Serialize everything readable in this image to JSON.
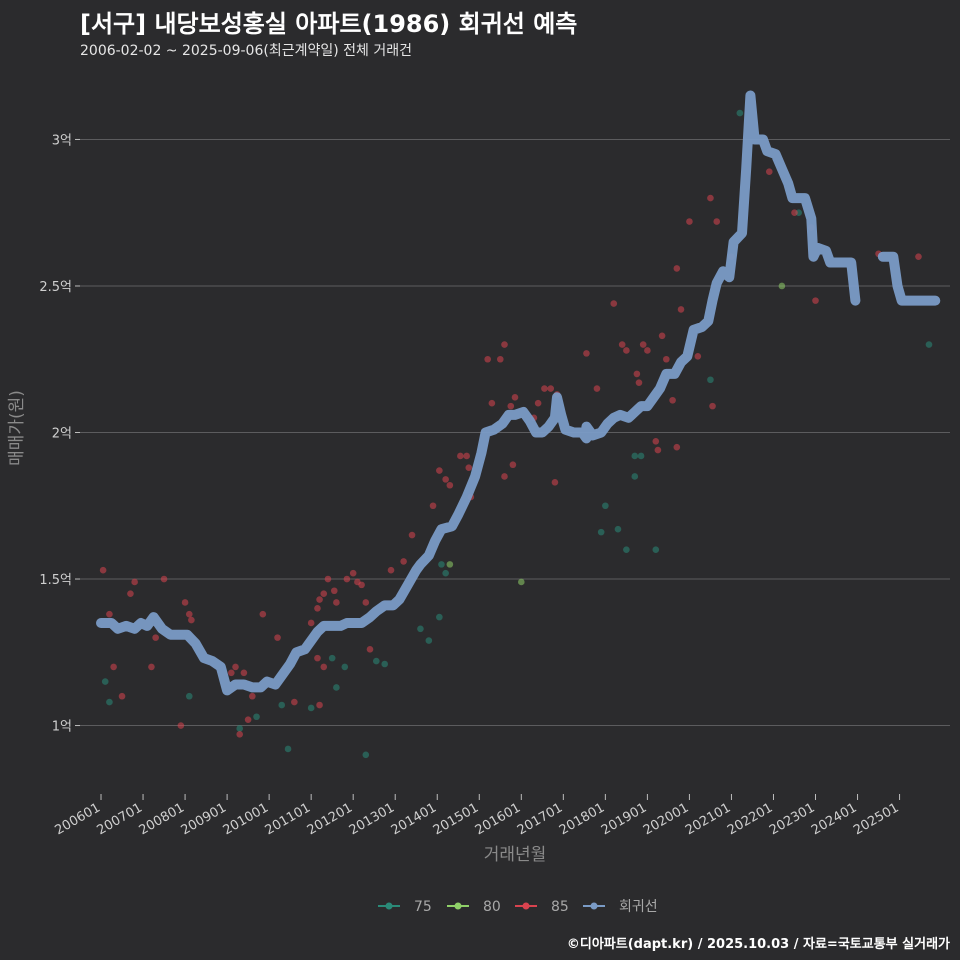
{
  "title": "[서구] 내당보성홍실 아파트(1986) 회귀선 예측",
  "subtitle": "2006-02-02 ~ 2025-09-06(최근계약일) 전체 거래건",
  "footer": "©디아파트(dapt.kr) / 2025.10.03 / 자료=국토교통부 실거래가",
  "chart_data": {
    "type": "scatter",
    "title": "[서구] 내당보성홍실 아파트(1986) 회귀선 예측",
    "xlabel": "거래년월",
    "ylabel": "매매가(원)",
    "xlim": [
      2005.5,
      2026.2
    ],
    "ylim": [
      0.78,
      3.22
    ],
    "y_unit": "억",
    "x_ticks": [
      {
        "value": 2006.0,
        "label": "200601"
      },
      {
        "value": 2007.0,
        "label": "200701"
      },
      {
        "value": 2008.0,
        "label": "200801"
      },
      {
        "value": 2009.0,
        "label": "200901"
      },
      {
        "value": 2010.0,
        "label": "201001"
      },
      {
        "value": 2011.0,
        "label": "201101"
      },
      {
        "value": 2012.0,
        "label": "201201"
      },
      {
        "value": 2013.0,
        "label": "201301"
      },
      {
        "value": 2014.0,
        "label": "201401"
      },
      {
        "value": 2015.0,
        "label": "201501"
      },
      {
        "value": 2016.0,
        "label": "201601"
      },
      {
        "value": 2017.0,
        "label": "201701"
      },
      {
        "value": 2018.0,
        "label": "201801"
      },
      {
        "value": 2019.0,
        "label": "201901"
      },
      {
        "value": 2020.0,
        "label": "202001"
      },
      {
        "value": 2021.0,
        "label": "202101"
      },
      {
        "value": 2022.0,
        "label": "202201"
      },
      {
        "value": 2023.0,
        "label": "202301"
      },
      {
        "value": 2024.0,
        "label": "202401"
      },
      {
        "value": 2025.0,
        "label": "202501"
      }
    ],
    "y_ticks": [
      {
        "value": 1.0,
        "label": "1억"
      },
      {
        "value": 1.5,
        "label": "1.5억"
      },
      {
        "value": 2.0,
        "label": "2억"
      },
      {
        "value": 2.5,
        "label": "2.5억"
      },
      {
        "value": 3.0,
        "label": "3억"
      }
    ],
    "legend": [
      {
        "name": "75",
        "color": "#2a8a78"
      },
      {
        "name": "80",
        "color": "#8fd068"
      },
      {
        "name": "85",
        "color": "#d9434f"
      },
      {
        "name": "회귀선",
        "color": "#7a9bc6"
      }
    ],
    "series": [
      {
        "name": "75",
        "color": "#2a8a78",
        "points": [
          [
            2006.1,
            1.15
          ],
          [
            2006.2,
            1.08
          ],
          [
            2008.1,
            1.1
          ],
          [
            2009.3,
            0.99
          ],
          [
            2009.7,
            1.03
          ],
          [
            2010.3,
            1.07
          ],
          [
            2010.45,
            0.92
          ],
          [
            2011.0,
            1.06
          ],
          [
            2011.5,
            1.23
          ],
          [
            2011.6,
            1.13
          ],
          [
            2011.8,
            1.2
          ],
          [
            2012.3,
            0.9
          ],
          [
            2012.55,
            1.22
          ],
          [
            2012.75,
            1.21
          ],
          [
            2013.6,
            1.33
          ],
          [
            2013.8,
            1.29
          ],
          [
            2014.05,
            1.37
          ],
          [
            2014.2,
            1.52
          ],
          [
            2014.1,
            1.55
          ],
          [
            2017.9,
            1.66
          ],
          [
            2018.0,
            1.75
          ],
          [
            2018.3,
            1.67
          ],
          [
            2018.5,
            1.6
          ],
          [
            2018.7,
            1.85
          ],
          [
            2018.7,
            1.92
          ],
          [
            2018.85,
            1.92
          ],
          [
            2019.2,
            1.6
          ],
          [
            2020.5,
            2.18
          ],
          [
            2021.2,
            3.09
          ],
          [
            2022.6,
            2.75
          ],
          [
            2025.7,
            2.3
          ]
        ]
      },
      {
        "name": "80",
        "color": "#8fd068",
        "points": [
          [
            2014.3,
            1.55
          ],
          [
            2016.0,
            1.49
          ],
          [
            2022.2,
            2.5
          ]
        ]
      },
      {
        "name": "85",
        "color": "#d9434f",
        "points": [
          [
            2006.05,
            1.53
          ],
          [
            2006.2,
            1.38
          ],
          [
            2006.3,
            1.2
          ],
          [
            2006.5,
            1.1
          ],
          [
            2006.7,
            1.45
          ],
          [
            2006.8,
            1.49
          ],
          [
            2007.2,
            1.2
          ],
          [
            2007.3,
            1.3
          ],
          [
            2007.5,
            1.5
          ],
          [
            2007.9,
            1.0
          ],
          [
            2008.0,
            1.42
          ],
          [
            2008.1,
            1.38
          ],
          [
            2008.15,
            1.36
          ],
          [
            2009.1,
            1.18
          ],
          [
            2009.2,
            1.2
          ],
          [
            2009.3,
            0.97
          ],
          [
            2009.4,
            1.18
          ],
          [
            2009.5,
            1.02
          ],
          [
            2009.6,
            1.1
          ],
          [
            2009.85,
            1.38
          ],
          [
            2010.2,
            1.3
          ],
          [
            2010.6,
            1.08
          ],
          [
            2011.0,
            1.35
          ],
          [
            2011.15,
            1.4
          ],
          [
            2011.2,
            1.43
          ],
          [
            2011.3,
            1.45
          ],
          [
            2011.4,
            1.5
          ],
          [
            2011.55,
            1.46
          ],
          [
            2011.6,
            1.42
          ],
          [
            2011.15,
            1.23
          ],
          [
            2011.3,
            1.2
          ],
          [
            2011.2,
            1.07
          ],
          [
            2011.85,
            1.5
          ],
          [
            2012.0,
            1.52
          ],
          [
            2012.1,
            1.49
          ],
          [
            2012.2,
            1.48
          ],
          [
            2012.3,
            1.42
          ],
          [
            2012.4,
            1.26
          ],
          [
            2012.9,
            1.53
          ],
          [
            2013.2,
            1.56
          ],
          [
            2013.4,
            1.65
          ],
          [
            2013.9,
            1.75
          ],
          [
            2014.05,
            1.87
          ],
          [
            2014.2,
            1.84
          ],
          [
            2014.3,
            1.82
          ],
          [
            2014.55,
            1.92
          ],
          [
            2014.7,
            1.92
          ],
          [
            2014.75,
            1.88
          ],
          [
            2014.8,
            1.78
          ],
          [
            2015.2,
            2.25
          ],
          [
            2015.3,
            2.1
          ],
          [
            2015.5,
            2.25
          ],
          [
            2015.6,
            2.3
          ],
          [
            2015.6,
            1.85
          ],
          [
            2015.75,
            2.09
          ],
          [
            2015.85,
            2.12
          ],
          [
            2015.8,
            1.89
          ],
          [
            2016.3,
            2.05
          ],
          [
            2016.4,
            2.1
          ],
          [
            2016.55,
            2.15
          ],
          [
            2016.7,
            2.15
          ],
          [
            2016.8,
            1.83
          ],
          [
            2016.85,
            2.13
          ],
          [
            2017.55,
            2.27
          ],
          [
            2017.8,
            2.15
          ],
          [
            2018.2,
            2.44
          ],
          [
            2018.4,
            2.3
          ],
          [
            2018.5,
            2.28
          ],
          [
            2018.75,
            2.2
          ],
          [
            2018.8,
            2.17
          ],
          [
            2018.9,
            2.3
          ],
          [
            2019.0,
            2.28
          ],
          [
            2019.2,
            1.97
          ],
          [
            2019.25,
            1.94
          ],
          [
            2019.35,
            2.33
          ],
          [
            2019.45,
            2.25
          ],
          [
            2019.6,
            2.11
          ],
          [
            2019.7,
            1.95
          ],
          [
            2019.7,
            2.56
          ],
          [
            2019.8,
            2.42
          ],
          [
            2020.0,
            2.72
          ],
          [
            2020.2,
            2.26
          ],
          [
            2020.5,
            2.8
          ],
          [
            2020.55,
            2.09
          ],
          [
            2020.65,
            2.72
          ],
          [
            2021.0,
            2.6
          ],
          [
            2021.9,
            2.89
          ],
          [
            2022.5,
            2.75
          ],
          [
            2022.9,
            2.7
          ],
          [
            2023.0,
            2.45
          ],
          [
            2024.5,
            2.61
          ],
          [
            2025.45,
            2.6
          ]
        ]
      }
    ],
    "regression": {
      "name": "회귀선",
      "color": "#7a9bc6",
      "segments": [
        [
          [
            2006.0,
            1.35
          ],
          [
            2006.25,
            1.35
          ],
          [
            2006.4,
            1.33
          ],
          [
            2006.6,
            1.34
          ],
          [
            2006.8,
            1.33
          ],
          [
            2006.95,
            1.35
          ],
          [
            2007.1,
            1.34
          ],
          [
            2007.25,
            1.37
          ],
          [
            2007.45,
            1.33
          ],
          [
            2007.65,
            1.31
          ],
          [
            2008.05,
            1.31
          ],
          [
            2008.25,
            1.28
          ],
          [
            2008.45,
            1.23
          ],
          [
            2008.65,
            1.22
          ],
          [
            2008.85,
            1.2
          ],
          [
            2009.0,
            1.12
          ],
          [
            2009.2,
            1.14
          ],
          [
            2009.4,
            1.14
          ],
          [
            2009.6,
            1.13
          ],
          [
            2009.8,
            1.13
          ],
          [
            2009.95,
            1.15
          ],
          [
            2010.15,
            1.14
          ],
          [
            2010.3,
            1.17
          ],
          [
            2010.5,
            1.21
          ],
          [
            2010.65,
            1.25
          ],
          [
            2010.85,
            1.26
          ],
          [
            2011.0,
            1.29
          ],
          [
            2011.15,
            1.32
          ],
          [
            2011.3,
            1.34
          ],
          [
            2011.5,
            1.34
          ],
          [
            2011.7,
            1.34
          ],
          [
            2011.85,
            1.35
          ],
          [
            2012.05,
            1.35
          ],
          [
            2012.2,
            1.35
          ],
          [
            2012.4,
            1.37
          ],
          [
            2012.55,
            1.39
          ],
          [
            2012.75,
            1.41
          ],
          [
            2012.95,
            1.41
          ],
          [
            2013.1,
            1.43
          ],
          [
            2013.3,
            1.48
          ],
          [
            2013.5,
            1.53
          ],
          [
            2013.6,
            1.55
          ],
          [
            2013.8,
            1.58
          ],
          [
            2013.95,
            1.63
          ],
          [
            2014.1,
            1.67
          ],
          [
            2014.35,
            1.68
          ],
          [
            2014.5,
            1.72
          ],
          [
            2014.7,
            1.78
          ],
          [
            2014.9,
            1.85
          ],
          [
            2015.05,
            1.93
          ],
          [
            2015.15,
            2.0
          ],
          [
            2015.35,
            2.01
          ],
          [
            2015.55,
            2.03
          ],
          [
            2015.7,
            2.06
          ],
          [
            2015.85,
            2.06
          ],
          [
            2016.05,
            2.07
          ],
          [
            2016.2,
            2.04
          ],
          [
            2016.35,
            2.0
          ],
          [
            2016.5,
            2.0
          ],
          [
            2016.65,
            2.02
          ],
          [
            2016.8,
            2.05
          ],
          [
            2016.85,
            2.12
          ],
          [
            2016.95,
            2.06
          ],
          [
            2017.05,
            2.01
          ],
          [
            2017.25,
            2.0
          ],
          [
            2017.45,
            2.0
          ],
          [
            2017.55,
            1.98
          ],
          [
            2017.55,
            2.02
          ],
          [
            2017.7,
            1.99
          ],
          [
            2017.9,
            2.0
          ],
          [
            2018.05,
            2.03
          ],
          [
            2018.2,
            2.05
          ],
          [
            2018.35,
            2.06
          ],
          [
            2018.55,
            2.05
          ],
          [
            2018.7,
            2.07
          ],
          [
            2018.85,
            2.09
          ],
          [
            2019.0,
            2.09
          ],
          [
            2019.15,
            2.12
          ],
          [
            2019.3,
            2.15
          ],
          [
            2019.45,
            2.2
          ],
          [
            2019.65,
            2.2
          ],
          [
            2019.8,
            2.24
          ],
          [
            2019.95,
            2.26
          ],
          [
            2020.1,
            2.35
          ],
          [
            2020.3,
            2.36
          ],
          [
            2020.45,
            2.38
          ],
          [
            2020.55,
            2.45
          ],
          [
            2020.65,
            2.51
          ],
          [
            2020.8,
            2.55
          ],
          [
            2020.95,
            2.53
          ],
          [
            2021.05,
            2.65
          ],
          [
            2021.25,
            2.68
          ],
          [
            2021.35,
            2.9
          ],
          [
            2021.45,
            3.15
          ],
          [
            2021.55,
            3.0
          ],
          [
            2021.75,
            3.0
          ],
          [
            2021.85,
            2.96
          ],
          [
            2022.05,
            2.95
          ],
          [
            2022.2,
            2.9
          ],
          [
            2022.35,
            2.85
          ],
          [
            2022.45,
            2.8
          ],
          [
            2022.75,
            2.8
          ],
          [
            2022.9,
            2.73
          ],
          [
            2022.95,
            2.6
          ],
          [
            2023.05,
            2.63
          ],
          [
            2023.25,
            2.62
          ],
          [
            2023.35,
            2.58
          ],
          [
            2023.6,
            2.58
          ],
          [
            2023.85,
            2.58
          ],
          [
            2023.95,
            2.45
          ]
        ],
        [
          [
            2024.6,
            2.6
          ],
          [
            2024.85,
            2.6
          ],
          [
            2024.95,
            2.5
          ],
          [
            2025.05,
            2.45
          ],
          [
            2025.4,
            2.45
          ],
          [
            2025.75,
            2.45
          ],
          [
            2025.85,
            2.45
          ]
        ]
      ]
    }
  }
}
